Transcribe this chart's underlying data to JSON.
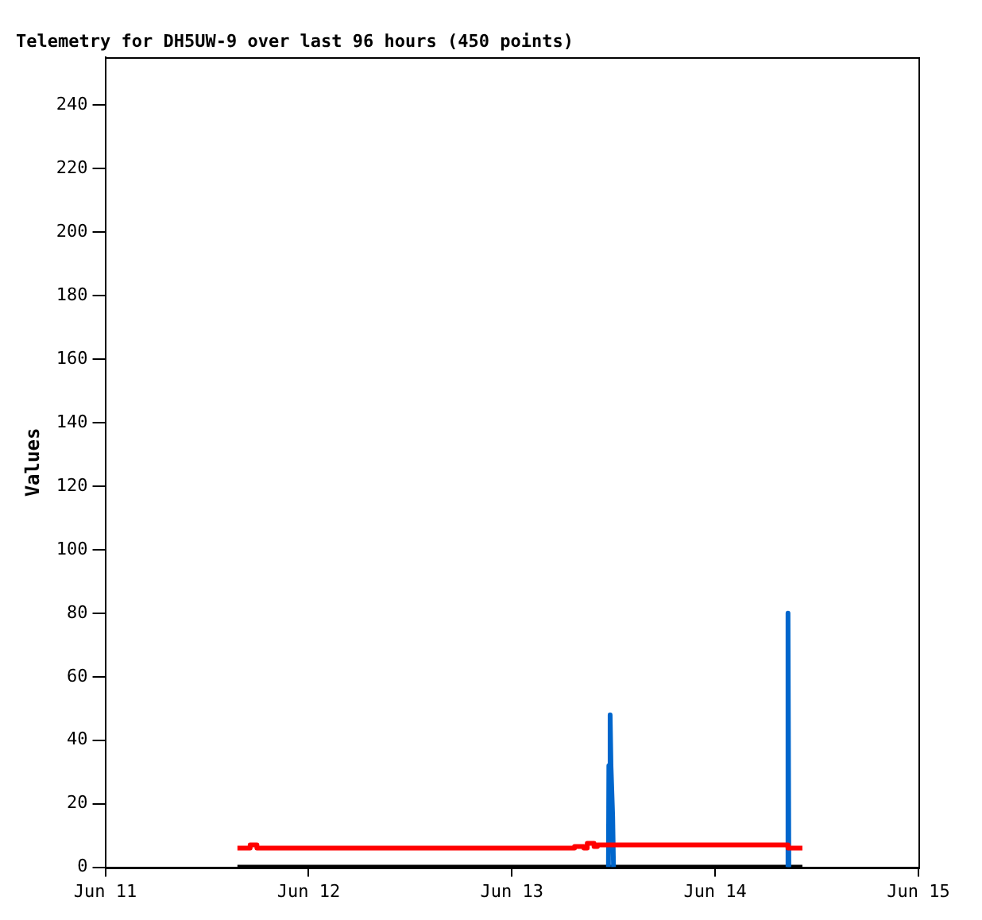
{
  "chart_data": {
    "type": "line",
    "title": "Telemetry for DH5UW-9 over last 96 hours (450 points)",
    "ylabel": "Values",
    "xlim": [
      "--06-11",
      "--06-15"
    ],
    "xticks": [
      {
        "value": "--06-11",
        "label": "Jun 11"
      },
      {
        "value": "--06-12",
        "label": "Jun 12"
      },
      {
        "value": "--06-13",
        "label": "Jun 13"
      },
      {
        "value": "--06-14",
        "label": "Jun 14"
      },
      {
        "value": "--06-15",
        "label": "Jun 15"
      }
    ],
    "ylim": [
      0,
      255
    ],
    "yticks": [
      0,
      20,
      40,
      60,
      80,
      100,
      120,
      140,
      160,
      180,
      200,
      220,
      240
    ],
    "grid": false,
    "legend": false,
    "marker": "none",
    "line_style": "solid",
    "series": [
      {
        "color": "#ff0000",
        "x": [
          "--06-11T15:36",
          "--06-11T17:06",
          "--06-11T17:06",
          "--06-11T17:54",
          "--06-11T17:54",
          "--06-13T07:24",
          "--06-13T07:24",
          "--06-13T08:30",
          "--06-13T08:30",
          "--06-13T08:54",
          "--06-13T08:54",
          "--06-13T09:42",
          "--06-13T09:42",
          "--06-13T10:06",
          "--06-13T10:06",
          "--06-13T11:06",
          "--06-13T11:06",
          "--06-14T08:36",
          "--06-14T08:36",
          "--06-14T10:18"
        ],
        "values": [
          6,
          6,
          7,
          7,
          6,
          6,
          6.5,
          6.5,
          6,
          6,
          7.5,
          7.5,
          6.5,
          6.5,
          7,
          7,
          7,
          7,
          6,
          6
        ]
      },
      {
        "color": "#0066cc",
        "x": [
          "--06-13T11:24",
          "--06-13T11:27",
          "--06-13T11:36",
          "--06-13T11:42",
          "--06-13T11:54",
          "--06-13T12:00"
        ],
        "values": [
          0,
          32,
          48,
          32,
          16,
          0
        ]
      },
      {
        "color": "#0066cc",
        "x": [
          "--06-14T08:30",
          "--06-14T08:36",
          "--06-14T08:42"
        ],
        "values": [
          0,
          80,
          0
        ]
      },
      {
        "color": "#000000",
        "x": [
          "--06-11T15:36",
          "--06-14T10:18"
        ],
        "values": [
          0,
          0
        ]
      }
    ]
  }
}
